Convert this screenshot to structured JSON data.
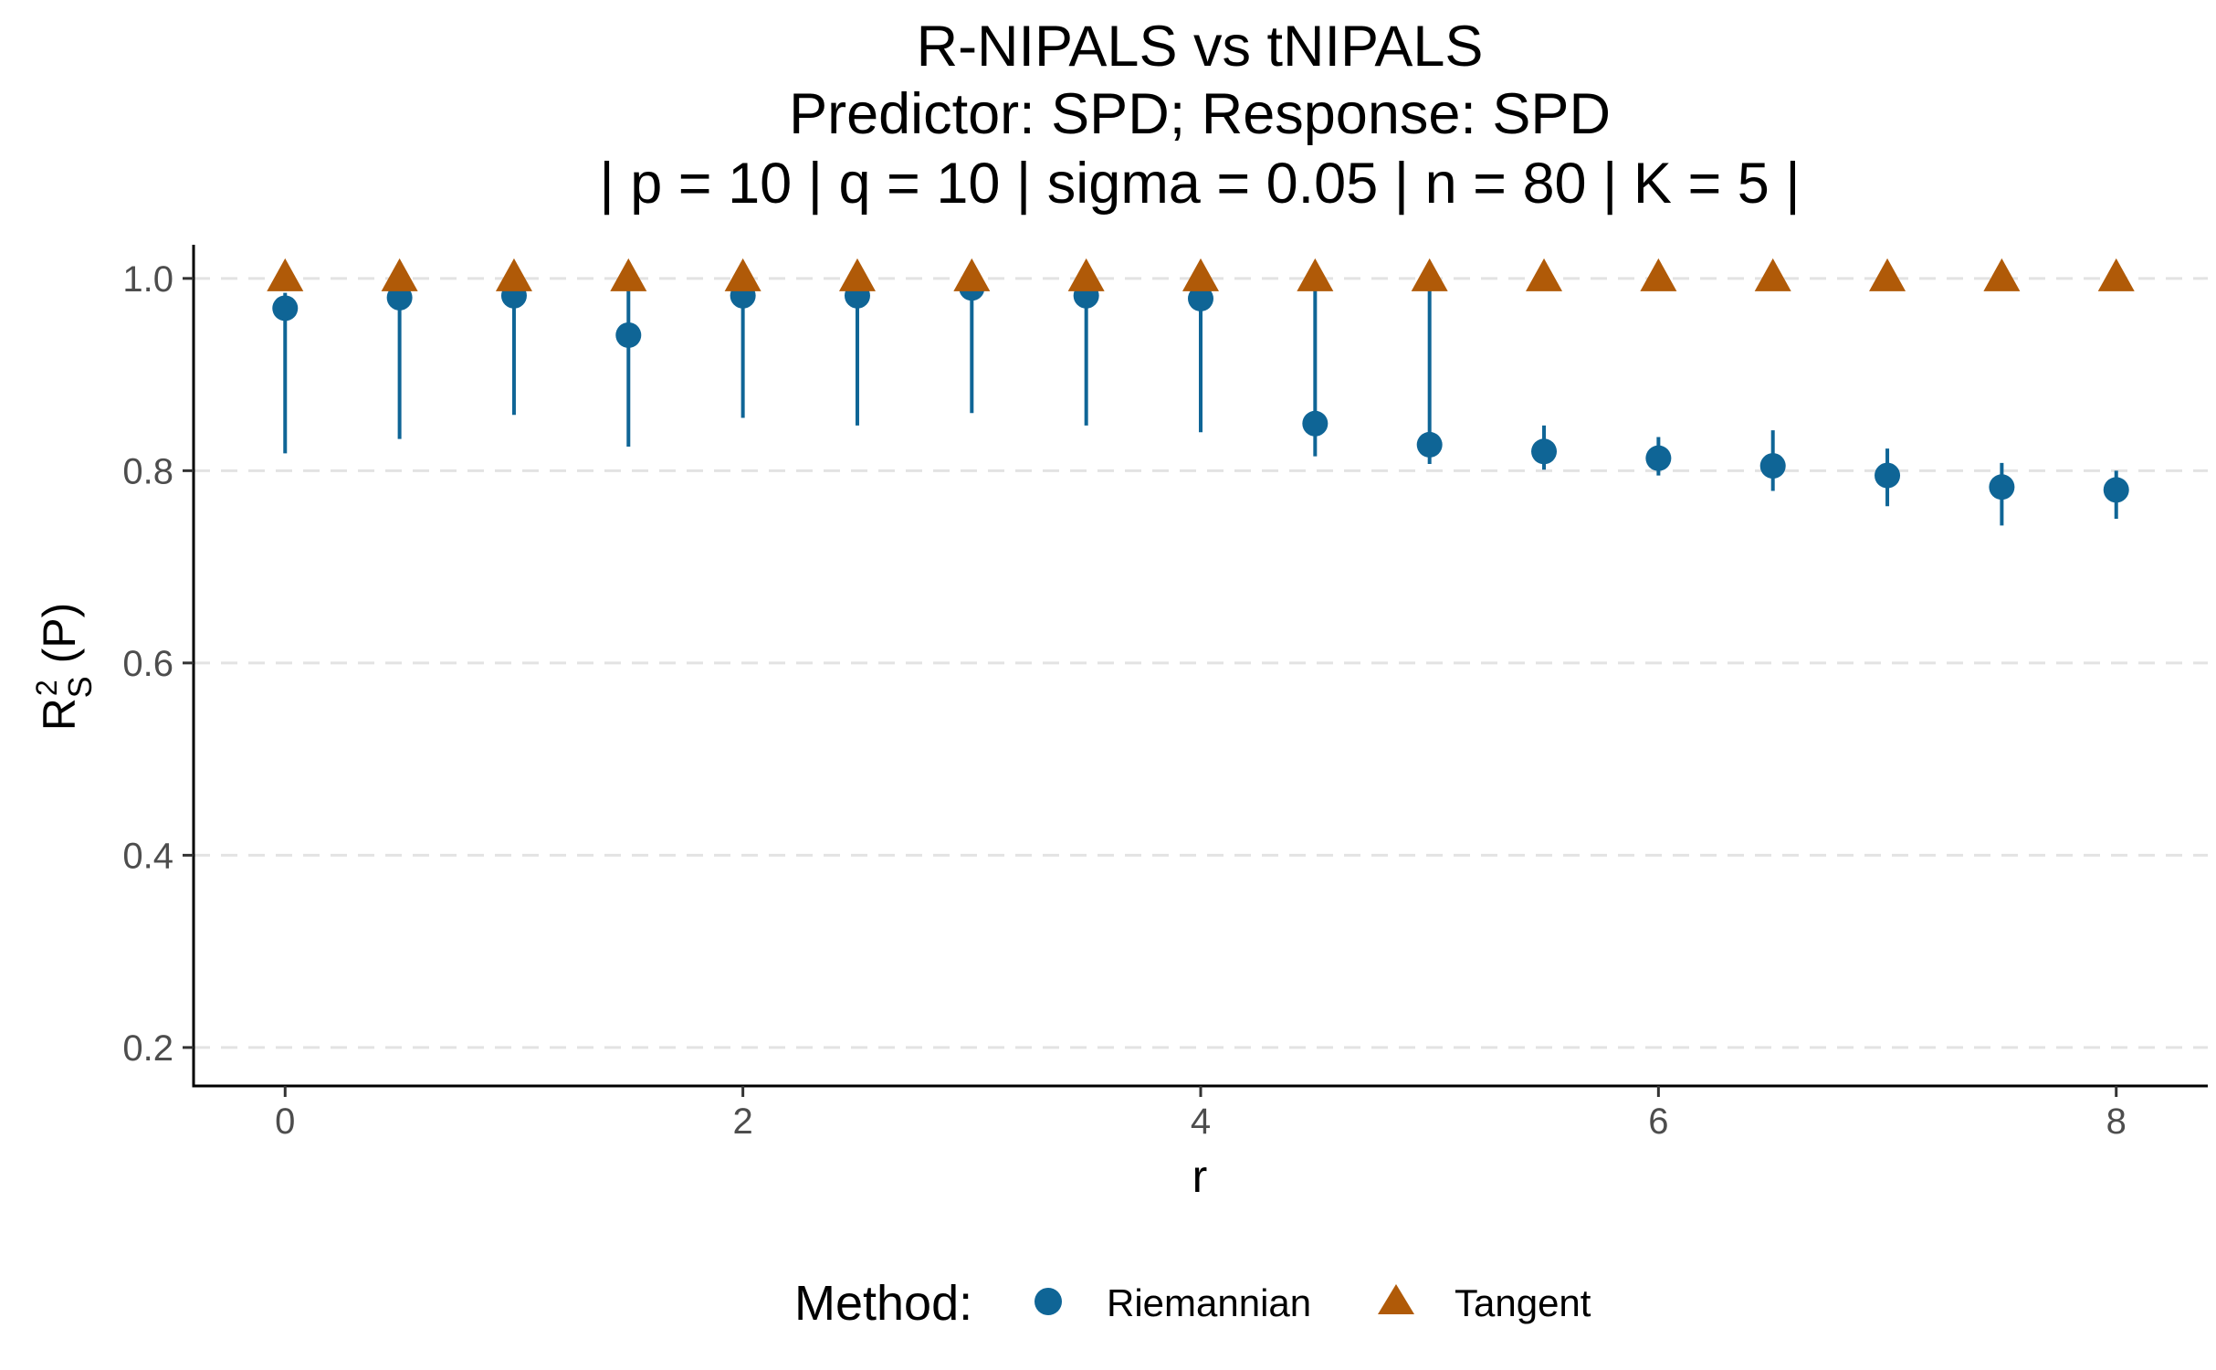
{
  "title": {
    "line1": "R-NIPALS vs tNIPALS",
    "line2": "Predictor: SPD; Response: SPD",
    "line3": "| p = 10 | q = 10 | sigma = 0.05 | n = 80 | K = 5 |"
  },
  "axes": {
    "xlabel": "r",
    "ylabel": {
      "main": "R",
      "superscript": "2",
      "subscript": "S",
      "suffix": " (P)"
    }
  },
  "legend": {
    "title": "Method:",
    "items": [
      {
        "label": "Riemannian",
        "shape": "circle",
        "color": "#0f6596"
      },
      {
        "label": "Tangent",
        "shape": "triangle",
        "color": "#b05a08"
      }
    ]
  },
  "chart_data": {
    "type": "scatter",
    "title": "R-NIPALS vs tNIPALS / Predictor: SPD; Response: SPD / | p = 10 | q = 10 | sigma = 0.05 | n = 80 | K = 5 |",
    "xlabel": "r",
    "ylabel": "R_S^2 (P)",
    "xlim": [
      -0.4,
      8.4
    ],
    "ylim": [
      0.16,
      1.035
    ],
    "x_ticks": [
      0,
      2,
      4,
      6,
      8
    ],
    "y_ticks": [
      0.2,
      0.4,
      0.6,
      0.8,
      1.0
    ],
    "y_tick_labels": [
      "0.2",
      "0.4",
      "0.6",
      "0.8",
      "1.0"
    ],
    "grid": "horizontal dashed at major y ticks",
    "legend_position": "bottom",
    "series": [
      {
        "name": "Riemannian",
        "marker": "circle",
        "color": "#0f6596",
        "x": [
          0,
          0.5,
          1,
          1.5,
          2,
          2.5,
          3,
          3.5,
          4,
          4.5,
          5,
          5.5,
          6,
          6.5,
          7,
          7.5,
          8
        ],
        "y": [
          0.969,
          0.98,
          0.982,
          0.941,
          0.982,
          0.982,
          0.99,
          0.982,
          0.979,
          0.849,
          0.827,
          0.82,
          0.813,
          0.805,
          0.795,
          0.783,
          0.78
        ],
        "y_low": [
          0.818,
          0.833,
          0.858,
          0.825,
          0.855,
          0.847,
          0.86,
          0.847,
          0.84,
          0.815,
          0.807,
          0.801,
          0.795,
          0.779,
          0.763,
          0.743,
          0.75
        ],
        "y_high": [
          0.985,
          0.995,
          0.998,
          0.99,
          0.998,
          0.998,
          0.998,
          0.998,
          0.998,
          0.988,
          0.987,
          0.847,
          0.835,
          0.842,
          0.823,
          0.808,
          0.8
        ]
      },
      {
        "name": "Tangent",
        "marker": "triangle",
        "color": "#b05a08",
        "x": [
          0,
          0.5,
          1,
          1.5,
          2,
          2.5,
          3,
          3.5,
          4,
          4.5,
          5,
          5.5,
          6,
          6.5,
          7,
          7.5,
          8
        ],
        "y": [
          1.0,
          1.0,
          1.0,
          1.0,
          1.0,
          1.0,
          1.0,
          1.0,
          1.0,
          1.0,
          1.0,
          1.0,
          1.0,
          1.0,
          1.0,
          1.0,
          1.0
        ]
      }
    ]
  }
}
